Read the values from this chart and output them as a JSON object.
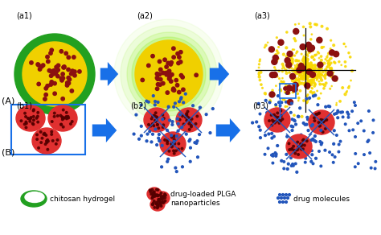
{
  "bg_color": "#ffffff",
  "green_outer": "#22a020",
  "yellow_core": "#f0d000",
  "yellow_glow": "#aaee00",
  "dark_red_dot": "#8b1010",
  "red_particle": "#e03030",
  "blue_arrow": "#1870e8",
  "blue_dot": "#2255bb",
  "label_a1": "(a1)",
  "label_a2": "(a2)",
  "label_a3": "(a3)",
  "label_b1": "(b1)",
  "label_b2": "(b2)",
  "label_b3": "(b3)",
  "label_A": "(A)",
  "label_B": "(B)",
  "legend_text1": "chitosan hydrogel",
  "legend_text2": "drug-loaded PLGA\nnanoparticles",
  "legend_text3": "drug molecules",
  "fig_w": 4.74,
  "fig_h": 2.92,
  "dpi": 100
}
